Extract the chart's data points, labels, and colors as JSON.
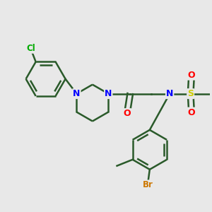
{
  "background_color": "#e8e8e8",
  "atom_colors": {
    "C": "#1a3a1a",
    "N": "#0000ff",
    "O": "#ff0000",
    "S": "#cccc00",
    "Cl": "#00aa00",
    "Br": "#cc7700",
    "H": "#000000"
  },
  "bond_color": "#2a5a2a",
  "bond_width": 1.8,
  "figsize": [
    3.0,
    3.0
  ],
  "dpi": 100
}
